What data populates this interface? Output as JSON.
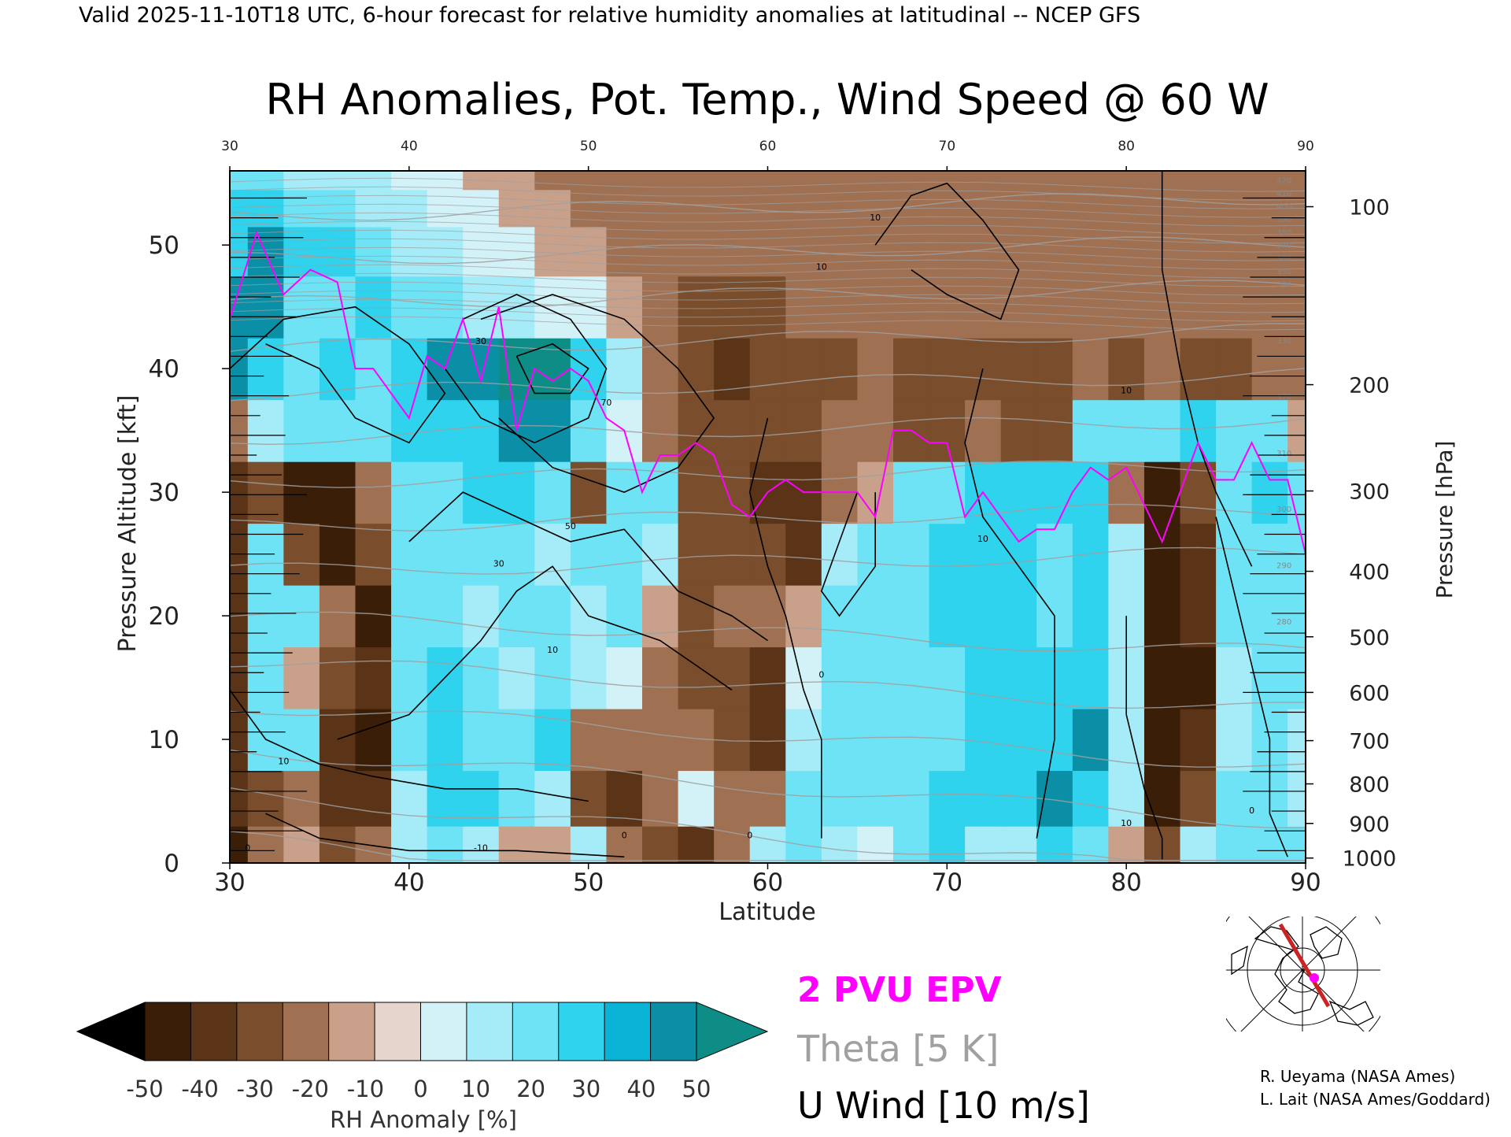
{
  "header": "Valid 2025-11-10T18 UTC, 6-hour forecast for relative humidity anomalies at latitudinal -- NCEP GFS",
  "chart_data": {
    "type": "heatmap",
    "title": "RH Anomalies, Pot. Temp., Wind Speed @ 60 W",
    "xlabel": "Latitude",
    "ylabel": "Pressure Altitude [kft]",
    "y2label": "Pressure [hPa]",
    "xlim": [
      30,
      90
    ],
    "ylim": [
      0,
      56
    ],
    "x_ticks": [
      "30",
      "40",
      "50",
      "60",
      "70",
      "80",
      "90"
    ],
    "y_ticks": [
      "0",
      "10",
      "20",
      "30",
      "40",
      "50"
    ],
    "pressure_ticks": [
      {
        "label": "100",
        "kft": 53.1
      },
      {
        "label": "200",
        "kft": 38.7
      },
      {
        "label": "300",
        "kft": 30.1
      },
      {
        "label": "400",
        "kft": 23.6
      },
      {
        "label": "500",
        "kft": 18.3
      },
      {
        "label": "600",
        "kft": 13.8
      },
      {
        "label": "700",
        "kft": 9.9
      },
      {
        "label": "800",
        "kft": 6.4
      },
      {
        "label": "900",
        "kft": 3.2
      },
      {
        "label": "1000",
        "kft": 0.4
      }
    ],
    "rh_anomaly_field": [
      [
        -45,
        -20,
        -5,
        -25,
        -15,
        10,
        20,
        10,
        -10,
        -5,
        10,
        -15,
        -30,
        -40,
        -20,
        10,
        20,
        15,
        5,
        20,
        30,
        15,
        10,
        30,
        25,
        -10,
        -30,
        15,
        20,
        25,
        20
      ],
      [
        -40,
        -30,
        -15,
        -40,
        -35,
        15,
        30,
        30,
        25,
        10,
        -25,
        -35,
        -15,
        5,
        -20,
        -15,
        20,
        25,
        25,
        20,
        35,
        30,
        30,
        40,
        35,
        10,
        -45,
        -30,
        20,
        20,
        10
      ],
      [
        -35,
        25,
        20,
        -40,
        -45,
        25,
        30,
        25,
        20,
        30,
        -15,
        -20,
        -20,
        -15,
        -30,
        -35,
        10,
        20,
        25,
        25,
        25,
        30,
        30,
        35,
        40,
        15,
        -50,
        -40,
        15,
        20,
        15
      ],
      [
        -35,
        20,
        -10,
        -30,
        -40,
        20,
        30,
        20,
        10,
        25,
        10,
        5,
        -15,
        -25,
        -30,
        -40,
        5,
        20,
        25,
        20,
        25,
        30,
        30,
        30,
        35,
        15,
        -50,
        -45,
        10,
        25,
        20
      ],
      [
        -40,
        20,
        20,
        -20,
        -45,
        20,
        25,
        15,
        20,
        25,
        15,
        20,
        -10,
        -30,
        -20,
        -15,
        -10,
        20,
        25,
        20,
        30,
        30,
        30,
        25,
        30,
        10,
        -50,
        -40,
        20,
        25,
        20
      ],
      [
        -40,
        20,
        -30,
        -45,
        -30,
        20,
        25,
        25,
        20,
        15,
        20,
        20,
        10,
        -30,
        -30,
        -25,
        -35,
        10,
        20,
        25,
        30,
        35,
        30,
        25,
        30,
        10,
        -50,
        -40,
        20,
        25,
        20
      ],
      [
        -40,
        -30,
        -45,
        -45,
        -20,
        25,
        25,
        30,
        30,
        25,
        -25,
        20,
        20,
        -25,
        -30,
        -35,
        -35,
        -20,
        -10,
        25,
        25,
        30,
        30,
        30,
        30,
        -20,
        -45,
        -25,
        25,
        30,
        20
      ],
      [
        -20,
        10,
        25,
        25,
        25,
        30,
        30,
        35,
        45,
        45,
        20,
        5,
        -15,
        -25,
        -25,
        -30,
        -25,
        -20,
        -20,
        -30,
        -25,
        -20,
        -25,
        -25,
        20,
        25,
        25,
        30,
        25,
        20,
        -10
      ],
      [
        40,
        30,
        20,
        30,
        20,
        35,
        40,
        45,
        50,
        50,
        30,
        10,
        -15,
        -30,
        -35,
        -30,
        -25,
        -25,
        -20,
        -25,
        -25,
        -30,
        -25,
        -25,
        -20,
        -25,
        -20,
        -25,
        -25,
        -20,
        -20
      ],
      [
        40,
        40,
        20,
        25,
        30,
        25,
        20,
        15,
        10,
        5,
        0,
        -5,
        -15,
        -25,
        -25,
        -25,
        -20,
        -20,
        -15,
        -15,
        -20,
        -20,
        -20,
        -20,
        -20,
        -20,
        -20,
        -20,
        -20,
        -20,
        -15
      ],
      [
        35,
        45,
        35,
        30,
        20,
        15,
        10,
        5,
        0,
        -5,
        -10,
        -15,
        -20,
        -20,
        -20,
        -20,
        -20,
        -20,
        -20,
        -20,
        -20,
        -20,
        -20,
        -20,
        -20,
        -20,
        -20,
        -20,
        -20,
        -20,
        -20
      ],
      [
        30,
        30,
        25,
        20,
        15,
        10,
        5,
        0,
        -5,
        -10,
        -15,
        -15,
        -20,
        -20,
        -20,
        -20,
        -20,
        -20,
        -20,
        -20,
        -20,
        -20,
        -20,
        -20,
        -20,
        -20,
        -20,
        -20,
        -20,
        -20,
        -20
      ],
      [
        20,
        20,
        15,
        15,
        10,
        5,
        0,
        -5,
        -10,
        -15,
        -15,
        -15,
        -15,
        -15,
        -15,
        -15,
        -15,
        -15,
        -15,
        -15,
        -15,
        -15,
        -15,
        -15,
        -15,
        -15,
        -15,
        -15,
        -15,
        -15,
        -15
      ]
    ],
    "field_latitudes": [
      30,
      32,
      34,
      36,
      38,
      40,
      42,
      44,
      46,
      48,
      50,
      52,
      54,
      56,
      58,
      60,
      62,
      64,
      66,
      68,
      70,
      72,
      74,
      76,
      78,
      80,
      82,
      84,
      86,
      88,
      90
    ],
    "field_altitudes_kft": [
      1,
      5,
      10,
      15,
      20,
      25,
      30,
      35,
      40,
      45,
      50,
      53,
      56
    ],
    "pvu2_epv_line": {
      "lat": [
        30,
        31.5,
        33,
        34.5,
        36,
        37,
        38,
        39,
        40,
        41,
        42,
        43,
        44,
        45,
        46,
        47,
        48,
        49,
        50,
        51,
        52,
        53,
        54,
        55,
        56,
        57,
        58,
        59,
        60,
        61,
        62,
        63,
        64,
        65,
        66,
        67,
        68,
        69,
        70,
        71,
        72,
        73,
        74,
        75,
        76,
        77,
        78,
        79,
        80,
        81,
        82,
        83,
        84,
        85,
        86,
        87,
        88,
        89,
        90
      ],
      "kft": [
        44,
        51,
        46,
        48,
        47,
        40,
        40,
        38,
        36,
        41,
        40,
        44,
        39,
        45,
        35,
        40,
        39,
        40,
        39,
        36,
        35,
        30,
        33,
        33,
        34,
        33,
        29,
        28,
        30,
        31,
        30,
        30,
        30,
        30,
        28,
        35,
        35,
        34,
        34,
        28,
        30,
        28,
        26,
        27,
        27,
        30,
        32,
        31,
        32,
        29,
        26,
        30,
        34,
        31,
        31,
        34,
        31,
        31,
        25
      ]
    },
    "wind_contour_labels": [
      "10",
      "10",
      "10",
      "30",
      "50",
      "70",
      "30",
      "10",
      "0",
      "0",
      "-10",
      "10",
      "10",
      "0",
      "10",
      "0",
      "0"
    ],
    "theta_label_values": [
      "420",
      "410",
      "400",
      "390",
      "380",
      "370",
      "360",
      "350",
      "340",
      "330",
      "320",
      "310",
      "300",
      "290",
      "280"
    ],
    "theta_kelvin": [
      280,
      290,
      300,
      310,
      320,
      330,
      340,
      350,
      360,
      370,
      380,
      390,
      400,
      410,
      420
    ]
  },
  "legend": {
    "colorbar_label": "RH Anomaly [%]",
    "colorbar_ticks": [
      "-50",
      "-40",
      "-30",
      "-20",
      "-10",
      "0",
      "10",
      "20",
      "30",
      "40",
      "50"
    ],
    "colorbar_colors": [
      "#000000",
      "#3b1e08",
      "#5b3418",
      "#7a4d2c",
      "#a07052",
      "#c9a08a",
      "#e6d5cc",
      "#d2f2f7",
      "#a6ecf8",
      "#6fe3f6",
      "#2fd3ee",
      "#08b3d6",
      "#0a8fa6",
      "#0e8c86"
    ],
    "epv_label": "2 PVU EPV",
    "theta_label": "Theta [5 K]",
    "wind_label": "U Wind [10 m/s]",
    "epv_color": "#ff00ff",
    "theta_color": "#a0a0a0",
    "wind_color": "#000000"
  },
  "credits": {
    "line1": "R. Ueyama (NASA Ames)",
    "line2": "L. Lait (NASA Ames/Goddard)"
  },
  "inset_map": {
    "icon": "north-polar-map-icon",
    "section_color": "#cc2222",
    "marker_color": "#ff00ff"
  }
}
